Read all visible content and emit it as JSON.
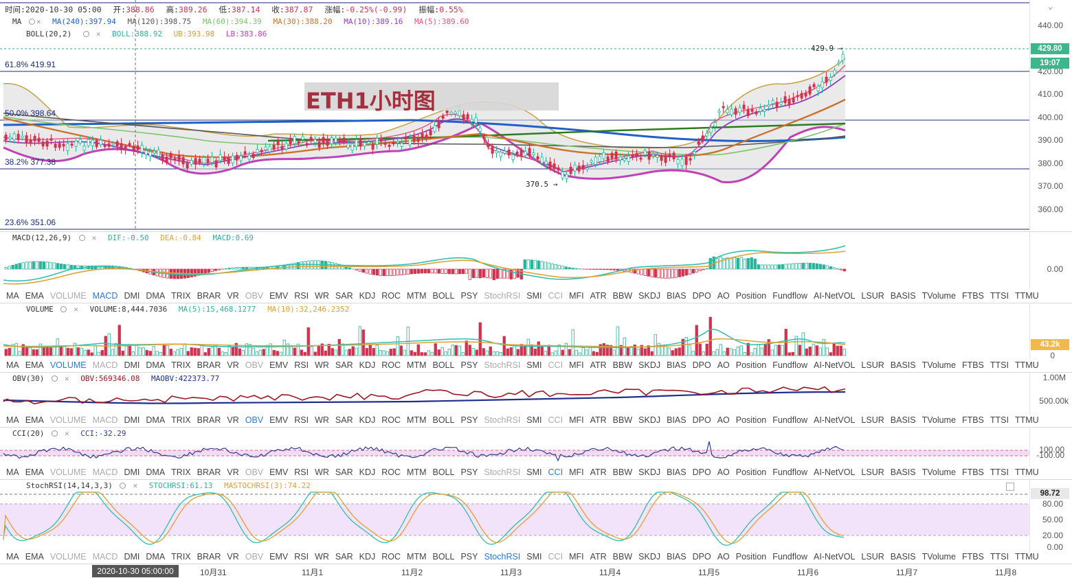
{
  "header": {
    "time": "时间:2020-10-30 05:00",
    "open_label": "开:",
    "open": "388.86",
    "high_label": "高:",
    "high": "389.26",
    "low_label": "低:",
    "low": "387.14",
    "close_label": "收:",
    "close": "387.87",
    "chg_label": "涨幅:",
    "chg": "-0.25%(-0.99)",
    "amp_label": "振幅:",
    "amp": "0.55%"
  },
  "ma_legend": {
    "name": "MA",
    "ma240": "MA(240):397.94",
    "ma120": "MA(120):398.75",
    "ma60": "MA(60):394.39",
    "ma30": "MA(30):388.20",
    "ma10": "MA(10):389.16",
    "ma5": "MA(5):389.60"
  },
  "boll_legend": {
    "name": "BOLL(20,2)",
    "boll": "BOLL:388.92",
    "ub": "UB:393.98",
    "lb": "LB:383.86"
  },
  "fib": {
    "f618": "61.8% 419.91",
    "f50": "50.0% 398.64",
    "f382": "38.2% 377.38",
    "f236": "23.6% 351.06"
  },
  "chart_title": "ETH1小时图",
  "annotations": {
    "high": "429.9",
    "low": "370.5"
  },
  "price_axis": [
    "440.00",
    "430.00",
    "420.00",
    "410.00",
    "400.00",
    "390.00",
    "380.00",
    "370.00",
    "360.00"
  ],
  "price_tag": {
    "price": "429.80",
    "countdown": "19:07"
  },
  "macd": {
    "name": "MACD(12,26,9)",
    "dif": "DIF:-0.50",
    "dea": "DEA:-0.84",
    "macd": "MACD:0.69",
    "axis": "0.00"
  },
  "volume": {
    "name": "VOLUME",
    "value": "VOLUME:8,444.7036",
    "ma5": "MA(5):15,468.1277",
    "ma10": "MA(10):32,246.2352",
    "tag": "43.2k",
    "axis0": "0"
  },
  "obv": {
    "name": "OBV(30)",
    "value": "OBV:569346.08",
    "maobv": "MAOBV:422373.77",
    "axis": [
      "1.00M",
      "500.00k"
    ]
  },
  "cci": {
    "name": "CCI(20)",
    "value": "CCI:-32.29",
    "axis": [
      "100.00",
      "-100.00"
    ]
  },
  "stochrsi": {
    "name": "StochRSI(14,14,3,3)",
    "value": "STOCHRSI:61.13",
    "ma": "MASTOCHRSI(3):74.22",
    "tag": "98.72",
    "axis": [
      "80.00",
      "50.00",
      "20.00",
      "0.00"
    ]
  },
  "indicator_tabs": [
    "MA",
    "EMA",
    "VOLUME",
    "MACD",
    "DMI",
    "DMA",
    "TRIX",
    "BRAR",
    "VR",
    "OBV",
    "EMV",
    "RSI",
    "WR",
    "SAR",
    "KDJ",
    "ROC",
    "MTM",
    "BOLL",
    "PSY",
    "StochRSI",
    "SMI",
    "CCI",
    "MFI",
    "ATR",
    "BBW",
    "SKDJ",
    "BIAS",
    "DPO",
    "AO",
    "Position",
    "Fundflow",
    "AI-NetVOL",
    "LSUR",
    "BASIS",
    "TVolume",
    "FTBS",
    "TTSI",
    "TTMU"
  ],
  "xaxis": {
    "cursor": "2020-10-30 05:00:00",
    "labels": [
      "10月31",
      "11月1",
      "11月2",
      "11月3",
      "11月4",
      "11月5",
      "11月6",
      "11月7",
      "11月8"
    ]
  },
  "colors": {
    "up": "#2bb39a",
    "down": "#d0334e",
    "ma5": "#e8507a",
    "ma10": "#8e3fc4",
    "ma30": "#c9732a",
    "ma60": "#7cc46a",
    "ma120": "#555555",
    "ma240": "#1f5fc8",
    "boll": "#c9a040",
    "accent": "#2a78d4"
  }
}
